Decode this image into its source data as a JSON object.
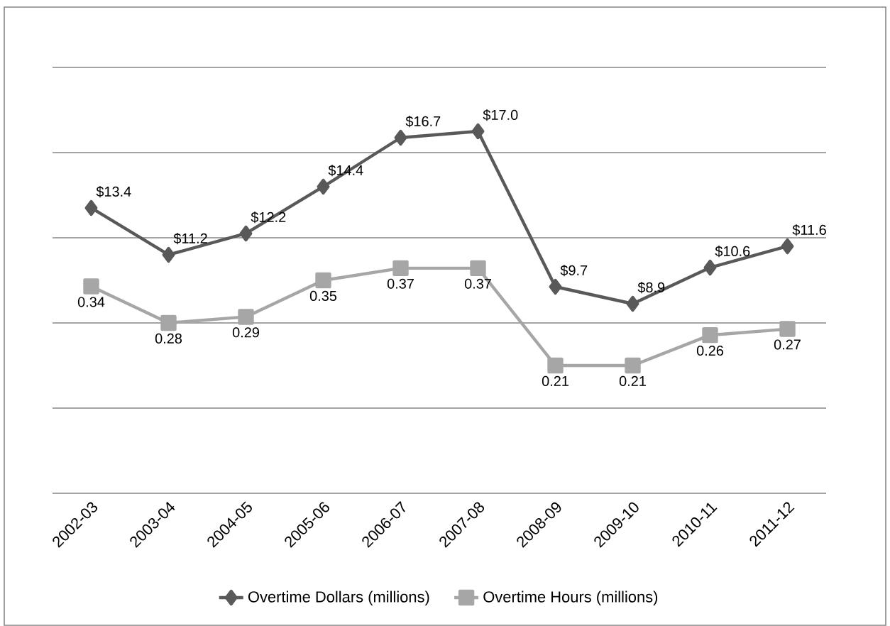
{
  "chart_data": {
    "type": "line",
    "categories": [
      "2002-03",
      "2003-04",
      "2004-05",
      "2005-06",
      "2006-07",
      "2007-08",
      "2008-09",
      "2009-10",
      "2010-11",
      "2011-12"
    ],
    "series": [
      {
        "name": "Overtime Dollars (millions)",
        "color": "#595959",
        "marker": "diamond",
        "values": [
          13.4,
          11.2,
          12.2,
          14.4,
          16.7,
          17.0,
          9.7,
          8.9,
          10.6,
          11.6
        ],
        "value_labels": [
          "$13.4",
          "$11.2",
          "$12.2",
          "$14.4",
          "$16.7",
          "$17.0",
          "$9.7",
          "$8.9",
          "$10.6",
          "$11.6"
        ]
      },
      {
        "name": "Overtime Hours (millions)",
        "color": "#a6a6a6",
        "marker": "square",
        "axis": "y2",
        "values": [
          0.34,
          0.28,
          0.29,
          0.35,
          0.37,
          0.37,
          0.21,
          0.21,
          0.26,
          0.27
        ],
        "value_labels": [
          "0.34",
          "0.28",
          "0.29",
          "0.35",
          "0.37",
          "0.37",
          "0.21",
          "0.21",
          "0.26",
          "0.27"
        ]
      }
    ],
    "ylim": [
      0,
      20
    ],
    "yticks": [
      0,
      4,
      8,
      12,
      16,
      20
    ],
    "y2lim": [
      0,
      0.7
    ],
    "tick_labels": "x",
    "grid": "y",
    "legend": "bottom",
    "line_style": "solid"
  }
}
